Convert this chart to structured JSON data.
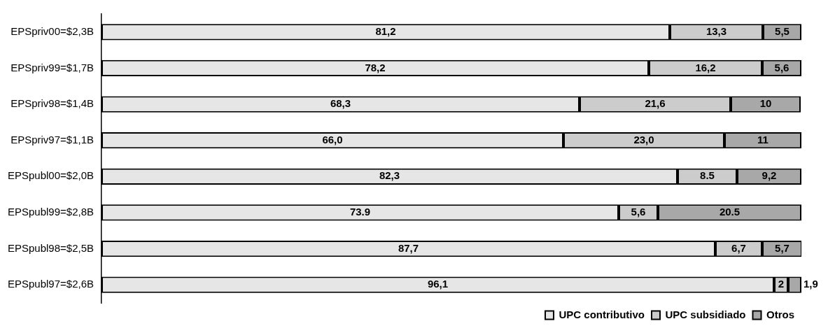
{
  "chart_data": {
    "type": "bar",
    "orientation": "horizontal",
    "stacked": true,
    "xlim": [
      0,
      100
    ],
    "tick_labels": "y",
    "legend": "bottom right",
    "categories": [
      "EPSpriv00=$2,3B",
      "EPSpriv99=$1,7B",
      "EPSpriv98=$1,4B",
      "EPSpriv97=$1,1B",
      "EPSpubl00=$2,0B",
      "EPSpubl99=$2,8B",
      "EPSpubl98=$2,5B",
      "EPSpubl97=$2,6B"
    ],
    "series": [
      {
        "name": "UPC contributivo",
        "color": "#e6e6e6",
        "values": [
          81.2,
          78.2,
          68.3,
          66.0,
          82.3,
          73.9,
          87.7,
          96.1
        ],
        "value_labels": [
          "81,2",
          "78,2",
          "68,3",
          "66,0",
          "82,3",
          "73.9",
          "87,7",
          "96,1"
        ]
      },
      {
        "name": "UPC subsidiado",
        "color": "#cccccc",
        "values": [
          13.3,
          16.2,
          21.6,
          23.0,
          8.5,
          5.6,
          6.7,
          2
        ],
        "value_labels": [
          "13,3",
          "16,2",
          "21,6",
          "23,0",
          "8.5",
          "5,6",
          "6,7",
          "2"
        ]
      },
      {
        "name": "Otros",
        "color": "#a8a8a8",
        "values": [
          5.5,
          5.6,
          10,
          11,
          9.2,
          20.5,
          5.7,
          1.9
        ],
        "value_labels": [
          "5,5",
          "5,6",
          "10",
          "11",
          "9,2",
          "20.5",
          "5,7",
          "1,9"
        ]
      }
    ]
  }
}
